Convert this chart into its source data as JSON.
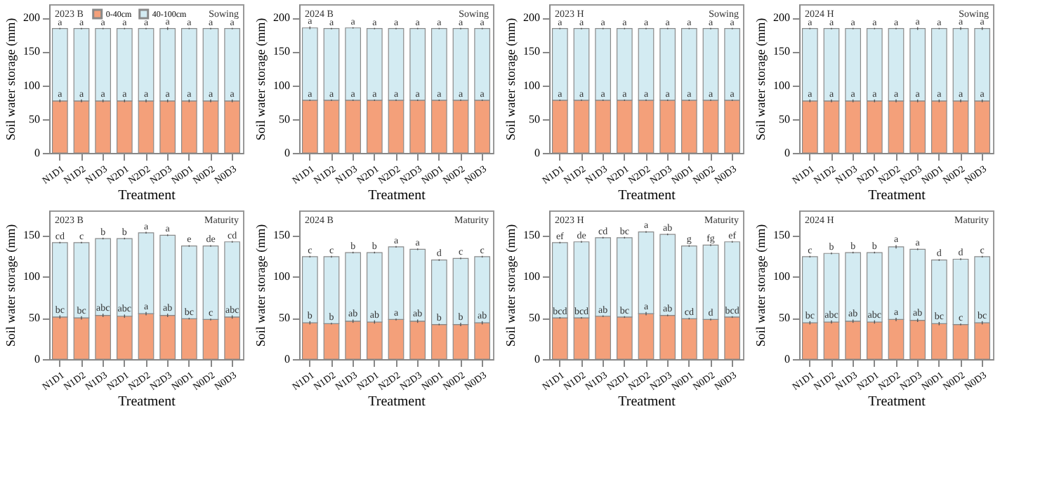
{
  "chart_data": [
    {
      "type": "bar",
      "stacked": true,
      "title": "2023 B",
      "subtitle": "Sowing",
      "xlabel": "Treatment",
      "ylabel": "Soil water storage (mm)",
      "ylim": [
        0,
        220
      ],
      "yticks": [
        0,
        50,
        100,
        150,
        200
      ],
      "legend": "top",
      "categories": [
        "N1D1",
        "N1D2",
        "N1D3",
        "N2D1",
        "N2D2",
        "N2D3",
        "N0D1",
        "N0D2",
        "N0D3"
      ],
      "series": [
        {
          "name": "0-40cm",
          "color": "#f4a07a",
          "values": [
            77,
            77,
            77,
            77,
            77,
            77,
            77,
            77,
            77
          ],
          "errors": [
            2,
            2,
            2,
            2,
            2,
            2,
            2,
            2,
            2
          ]
        },
        {
          "name": "40-100cm",
          "color": "#d3ebf2",
          "values": [
            107,
            107,
            107,
            107,
            107,
            107,
            107,
            107,
            107
          ],
          "errors": [
            1,
            1,
            1,
            1,
            1,
            2,
            1,
            1,
            1
          ]
        }
      ],
      "annotations": [
        {
          "text": "a",
          "x": "N1D1",
          "y": 79
        },
        {
          "text": "a",
          "x": "N1D2",
          "y": 79
        },
        {
          "text": "a",
          "x": "N1D3",
          "y": 79
        },
        {
          "text": "a",
          "x": "N2D1",
          "y": 79
        },
        {
          "text": "a",
          "x": "N2D2",
          "y": 79
        },
        {
          "text": "a",
          "x": "N2D3",
          "y": 79
        },
        {
          "text": "a",
          "x": "N0D1",
          "y": 79
        },
        {
          "text": "a",
          "x": "N0D2",
          "y": 79
        },
        {
          "text": "a",
          "x": "N0D3",
          "y": 79
        },
        {
          "text": "a",
          "x": "N1D1",
          "y": 185
        },
        {
          "text": "a",
          "x": "N1D2",
          "y": 185
        },
        {
          "text": "a",
          "x": "N1D3",
          "y": 185
        },
        {
          "text": "a",
          "x": "N2D1",
          "y": 185
        },
        {
          "text": "a",
          "x": "N2D2",
          "y": 185
        },
        {
          "text": "a",
          "x": "N2D3",
          "y": 186
        },
        {
          "text": "a",
          "x": "N0D1",
          "y": 185
        },
        {
          "text": "a",
          "x": "N0D2",
          "y": 185
        },
        {
          "text": "a",
          "x": "N0D3",
          "y": 185
        }
      ]
    },
    {
      "type": "bar",
      "stacked": true,
      "title": "2024 B",
      "subtitle": "Sowing",
      "xlabel": "Treatment",
      "ylabel": "Soil water storage (mm)",
      "ylim": [
        0,
        220
      ],
      "yticks": [
        0,
        50,
        100,
        150,
        200
      ],
      "categories": [
        "N1D1",
        "N1D2",
        "N1D3",
        "N2D1",
        "N2D2",
        "N2D3",
        "N0D1",
        "N0D2",
        "N0D3"
      ],
      "series": [
        {
          "color": "#f4a07a",
          "values": [
            78,
            78,
            78,
            78,
            78,
            78,
            78,
            78,
            78
          ],
          "errors": [
            1,
            1,
            1,
            1,
            1,
            1,
            1,
            1,
            1
          ]
        },
        {
          "color": "#d3ebf2",
          "values": [
            107,
            106,
            107,
            106,
            106,
            106,
            106,
            106,
            106
          ],
          "errors": [
            2,
            1,
            1,
            1,
            1,
            1,
            1,
            1,
            1
          ]
        }
      ],
      "annotations": [
        {
          "text": "a",
          "x": "N1D1",
          "y": 79
        },
        {
          "text": "a",
          "x": "N1D2",
          "y": 79
        },
        {
          "text": "a",
          "x": "N1D3",
          "y": 79
        },
        {
          "text": "a",
          "x": "N2D1",
          "y": 79
        },
        {
          "text": "a",
          "x": "N2D2",
          "y": 79
        },
        {
          "text": "a",
          "x": "N2D3",
          "y": 79
        },
        {
          "text": "a",
          "x": "N0D1",
          "y": 79
        },
        {
          "text": "a",
          "x": "N0D2",
          "y": 79
        },
        {
          "text": "a",
          "x": "N0D3",
          "y": 79
        },
        {
          "text": "a",
          "x": "N1D1",
          "y": 187
        },
        {
          "text": "a",
          "x": "N1D2",
          "y": 185
        },
        {
          "text": "a",
          "x": "N1D3",
          "y": 186
        },
        {
          "text": "a",
          "x": "N2D1",
          "y": 185
        },
        {
          "text": "a",
          "x": "N2D2",
          "y": 185
        },
        {
          "text": "a",
          "x": "N2D3",
          "y": 185
        },
        {
          "text": "a",
          "x": "N0D1",
          "y": 185
        },
        {
          "text": "a",
          "x": "N0D2",
          "y": 185
        },
        {
          "text": "a",
          "x": "N0D3",
          "y": 185
        }
      ]
    },
    {
      "type": "bar",
      "stacked": true,
      "title": "2023 H",
      "subtitle": "Sowing",
      "xlabel": "Treatment",
      "ylabel": "Soil water storage (mm)",
      "ylim": [
        0,
        220
      ],
      "yticks": [
        0,
        50,
        100,
        150,
        200
      ],
      "categories": [
        "N1D1",
        "N1D2",
        "N1D3",
        "N2D1",
        "N2D2",
        "N2D3",
        "N0D1",
        "N0D2",
        "N0D3"
      ],
      "series": [
        {
          "color": "#f4a07a",
          "values": [
            78,
            78,
            78,
            78,
            78,
            78,
            78,
            78,
            78
          ],
          "errors": [
            1,
            1,
            1,
            1,
            1,
            1,
            1,
            1,
            1
          ]
        },
        {
          "color": "#d3ebf2",
          "values": [
            106,
            106,
            106,
            106,
            106,
            106,
            106,
            106,
            106
          ],
          "errors": [
            1,
            1,
            1,
            1,
            1,
            1,
            1,
            1,
            1
          ]
        }
      ],
      "annotations": [
        {
          "text": "a",
          "x": "N1D1",
          "y": 79
        },
        {
          "text": "a",
          "x": "N1D2",
          "y": 79
        },
        {
          "text": "a",
          "x": "N1D3",
          "y": 79
        },
        {
          "text": "a",
          "x": "N2D1",
          "y": 79
        },
        {
          "text": "a",
          "x": "N2D2",
          "y": 79
        },
        {
          "text": "a",
          "x": "N2D3",
          "y": 79
        },
        {
          "text": "a",
          "x": "N0D1",
          "y": 79
        },
        {
          "text": "a",
          "x": "N0D2",
          "y": 79
        },
        {
          "text": "a",
          "x": "N0D3",
          "y": 79
        },
        {
          "text": "a",
          "x": "N1D1",
          "y": 185
        },
        {
          "text": "a",
          "x": "N1D2",
          "y": 185
        },
        {
          "text": "a",
          "x": "N1D3",
          "y": 185
        },
        {
          "text": "a",
          "x": "N2D1",
          "y": 185
        },
        {
          "text": "a",
          "x": "N2D2",
          "y": 185
        },
        {
          "text": "a",
          "x": "N2D3",
          "y": 185
        },
        {
          "text": "a",
          "x": "N0D1",
          "y": 185
        },
        {
          "text": "a",
          "x": "N0D2",
          "y": 185
        },
        {
          "text": "a",
          "x": "N0D3",
          "y": 185
        }
      ]
    },
    {
      "type": "bar",
      "stacked": true,
      "title": "2024 H",
      "subtitle": "Sowing",
      "xlabel": "Treatment",
      "ylabel": "Soil water storage (mm)",
      "ylim": [
        0,
        220
      ],
      "yticks": [
        0,
        50,
        100,
        150,
        200
      ],
      "categories": [
        "N1D1",
        "N1D2",
        "N1D3",
        "N2D1",
        "N2D2",
        "N2D3",
        "N0D1",
        "N0D2",
        "N0D3"
      ],
      "series": [
        {
          "color": "#f4a07a",
          "values": [
            77,
            77,
            77,
            77,
            77,
            77,
            77,
            77,
            77
          ],
          "errors": [
            2,
            2,
            2,
            2,
            2,
            2,
            2,
            2,
            2
          ]
        },
        {
          "color": "#d3ebf2",
          "values": [
            107,
            107,
            107,
            107,
            107,
            107,
            107,
            107,
            107
          ],
          "errors": [
            1,
            1,
            1,
            1,
            1,
            2,
            1,
            2,
            2
          ]
        }
      ],
      "annotations": [
        {
          "text": "a",
          "x": "N1D1",
          "y": 79
        },
        {
          "text": "a",
          "x": "N1D2",
          "y": 79
        },
        {
          "text": "a",
          "x": "N1D3",
          "y": 79
        },
        {
          "text": "a",
          "x": "N2D1",
          "y": 79
        },
        {
          "text": "a",
          "x": "N2D2",
          "y": 79
        },
        {
          "text": "a",
          "x": "N2D3",
          "y": 79
        },
        {
          "text": "a",
          "x": "N0D1",
          "y": 79
        },
        {
          "text": "a",
          "x": "N0D2",
          "y": 79
        },
        {
          "text": "a",
          "x": "N0D3",
          "y": 79
        },
        {
          "text": "a",
          "x": "N1D1",
          "y": 185
        },
        {
          "text": "a",
          "x": "N1D2",
          "y": 185
        },
        {
          "text": "a",
          "x": "N1D3",
          "y": 185
        },
        {
          "text": "a",
          "x": "N2D1",
          "y": 185
        },
        {
          "text": "a",
          "x": "N2D2",
          "y": 185
        },
        {
          "text": "a",
          "x": "N2D3",
          "y": 186
        },
        {
          "text": "a",
          "x": "N0D1",
          "y": 185
        },
        {
          "text": "a",
          "x": "N0D2",
          "y": 186
        },
        {
          "text": "a",
          "x": "N0D3",
          "y": 186
        }
      ]
    },
    {
      "type": "bar",
      "stacked": true,
      "title": "2023 B",
      "subtitle": "Maturity",
      "xlabel": "Treatment",
      "ylabel": "Soil water storage (mm)",
      "ylim": [
        0,
        180
      ],
      "yticks": [
        0,
        50,
        100,
        150
      ],
      "categories": [
        "N1D1",
        "N1D2",
        "N1D3",
        "N2D1",
        "N2D2",
        "N2D3",
        "N0D1",
        "N0D2",
        "N0D3"
      ],
      "series": [
        {
          "color": "#f4a07a",
          "values": [
            51,
            50,
            53,
            52,
            55,
            53,
            49,
            48,
            51
          ],
          "errors": [
            2,
            2,
            2,
            2,
            2,
            2,
            1,
            1,
            2
          ]
        },
        {
          "color": "#d3ebf2",
          "values": [
            90,
            91,
            93,
            94,
            98,
            97,
            88,
            89,
            91
          ],
          "errors": [
            1,
            1,
            1,
            1,
            1,
            1,
            1,
            1,
            1
          ]
        }
      ],
      "annotations": [
        {
          "text": "bc",
          "x": "N1D1",
          "y": 53
        },
        {
          "text": "bc",
          "x": "N1D2",
          "y": 52
        },
        {
          "text": "abc",
          "x": "N1D3",
          "y": 55
        },
        {
          "text": "abc",
          "x": "N2D1",
          "y": 54
        },
        {
          "text": "a",
          "x": "N2D2",
          "y": 57
        },
        {
          "text": "ab",
          "x": "N2D3",
          "y": 55
        },
        {
          "text": "bc",
          "x": "N0D1",
          "y": 50
        },
        {
          "text": "c",
          "x": "N0D2",
          "y": 49
        },
        {
          "text": "abc",
          "x": "N0D3",
          "y": 53
        },
        {
          "text": "cd",
          "x": "N1D1",
          "y": 142
        },
        {
          "text": "c",
          "x": "N1D2",
          "y": 142
        },
        {
          "text": "b",
          "x": "N1D3",
          "y": 147
        },
        {
          "text": "b",
          "x": "N2D1",
          "y": 147
        },
        {
          "text": "a",
          "x": "N2D2",
          "y": 154
        },
        {
          "text": "a",
          "x": "N2D3",
          "y": 151
        },
        {
          "text": "e",
          "x": "N0D1",
          "y": 138
        },
        {
          "text": "de",
          "x": "N0D2",
          "y": 138
        },
        {
          "text": "cd",
          "x": "N0D3",
          "y": 143
        }
      ]
    },
    {
      "type": "bar",
      "stacked": true,
      "title": "2024 B",
      "subtitle": "Maturity",
      "xlabel": "Treatment",
      "ylabel": "Soil water storage (mm)",
      "ylim": [
        0,
        180
      ],
      "yticks": [
        0,
        50,
        100,
        150
      ],
      "categories": [
        "N1D1",
        "N1D2",
        "N1D3",
        "N2D1",
        "N2D2",
        "N2D3",
        "N0D1",
        "N0D2",
        "N0D3"
      ],
      "series": [
        {
          "color": "#f4a07a",
          "values": [
            44,
            43,
            46,
            45,
            48,
            46,
            42,
            42,
            44
          ],
          "errors": [
            2,
            1,
            2,
            2,
            1,
            2,
            1,
            2,
            2
          ]
        },
        {
          "color": "#d3ebf2",
          "values": [
            80,
            81,
            83,
            84,
            88,
            87,
            78,
            80,
            80
          ],
          "errors": [
            1,
            1,
            1,
            1,
            1,
            1,
            1,
            1,
            1
          ]
        }
      ],
      "annotations": [
        {
          "text": "b",
          "x": "N1D1",
          "y": 46
        },
        {
          "text": "b",
          "x": "N1D2",
          "y": 44
        },
        {
          "text": "ab",
          "x": "N1D3",
          "y": 48
        },
        {
          "text": "ab",
          "x": "N2D1",
          "y": 47
        },
        {
          "text": "a",
          "x": "N2D2",
          "y": 49
        },
        {
          "text": "ab",
          "x": "N2D3",
          "y": 48
        },
        {
          "text": "b",
          "x": "N0D1",
          "y": 43
        },
        {
          "text": "b",
          "x": "N0D2",
          "y": 44
        },
        {
          "text": "ab",
          "x": "N0D3",
          "y": 46
        },
        {
          "text": "c",
          "x": "N1D1",
          "y": 125
        },
        {
          "text": "c",
          "x": "N1D2",
          "y": 125
        },
        {
          "text": "b",
          "x": "N1D3",
          "y": 130
        },
        {
          "text": "b",
          "x": "N2D1",
          "y": 130
        },
        {
          "text": "a",
          "x": "N2D2",
          "y": 137
        },
        {
          "text": "a",
          "x": "N2D3",
          "y": 134
        },
        {
          "text": "d",
          "x": "N0D1",
          "y": 121
        },
        {
          "text": "c",
          "x": "N0D2",
          "y": 123
        },
        {
          "text": "c",
          "x": "N0D3",
          "y": 125
        }
      ]
    },
    {
      "type": "bar",
      "stacked": true,
      "title": "2023 H",
      "subtitle": "Maturity",
      "xlabel": "Treatment",
      "ylabel": "Soil water storage (mm)",
      "ylim": [
        0,
        180
      ],
      "yticks": [
        0,
        50,
        100,
        150
      ],
      "categories": [
        "N1D1",
        "N1D2",
        "N1D3",
        "N2D1",
        "N2D2",
        "N2D3",
        "N0D1",
        "N0D2",
        "N0D3"
      ],
      "series": [
        {
          "color": "#f4a07a",
          "values": [
            50,
            50,
            52,
            51,
            55,
            53,
            49,
            48,
            51
          ],
          "errors": [
            1,
            1,
            1,
            1,
            2,
            1,
            1,
            1,
            1
          ]
        },
        {
          "color": "#d3ebf2",
          "values": [
            91,
            92,
            95,
            96,
            99,
            98,
            88,
            90,
            91
          ],
          "errors": [
            1,
            1,
            1,
            1,
            1,
            1,
            1,
            1,
            1
          ]
        }
      ],
      "annotations": [
        {
          "text": "bcd",
          "x": "N1D1",
          "y": 51
        },
        {
          "text": "bcd",
          "x": "N1D2",
          "y": 51
        },
        {
          "text": "ab",
          "x": "N1D3",
          "y": 53
        },
        {
          "text": "bc",
          "x": "N2D1",
          "y": 52
        },
        {
          "text": "a",
          "x": "N2D2",
          "y": 57
        },
        {
          "text": "ab",
          "x": "N2D3",
          "y": 54
        },
        {
          "text": "cd",
          "x": "N0D1",
          "y": 50
        },
        {
          "text": "d",
          "x": "N0D2",
          "y": 49
        },
        {
          "text": "bcd",
          "x": "N0D3",
          "y": 52
        },
        {
          "text": "ef",
          "x": "N1D1",
          "y": 142
        },
        {
          "text": "de",
          "x": "N1D2",
          "y": 143
        },
        {
          "text": "cd",
          "x": "N1D3",
          "y": 148
        },
        {
          "text": "bc",
          "x": "N2D1",
          "y": 148
        },
        {
          "text": "a",
          "x": "N2D2",
          "y": 155
        },
        {
          "text": "ab",
          "x": "N2D3",
          "y": 152
        },
        {
          "text": "g",
          "x": "N0D1",
          "y": 138
        },
        {
          "text": "fg",
          "x": "N0D2",
          "y": 139
        },
        {
          "text": "ef",
          "x": "N0D3",
          "y": 143
        }
      ]
    },
    {
      "type": "bar",
      "stacked": true,
      "title": "2024 H",
      "subtitle": "Maturity",
      "xlabel": "Treatment",
      "ylabel": "Soil water storage (mm)",
      "ylim": [
        0,
        180
      ],
      "yticks": [
        0,
        50,
        100,
        150
      ],
      "categories": [
        "N1D1",
        "N1D2",
        "N1D3",
        "N2D1",
        "N2D2",
        "N2D3",
        "N0D1",
        "N0D2",
        "N0D3"
      ],
      "series": [
        {
          "color": "#f4a07a",
          "values": [
            44,
            45,
            46,
            45,
            48,
            47,
            43,
            42,
            44
          ],
          "errors": [
            2,
            2,
            2,
            2,
            2,
            2,
            2,
            1,
            2
          ]
        },
        {
          "color": "#d3ebf2",
          "values": [
            80,
            83,
            83,
            84,
            88,
            86,
            77,
            79,
            80
          ],
          "errors": [
            1,
            1,
            1,
            1,
            2,
            1,
            1,
            1,
            1
          ]
        }
      ],
      "annotations": [
        {
          "text": "bc",
          "x": "N1D1",
          "y": 46
        },
        {
          "text": "abc",
          "x": "N1D2",
          "y": 47
        },
        {
          "text": "ab",
          "x": "N1D3",
          "y": 48
        },
        {
          "text": "abc",
          "x": "N2D1",
          "y": 47
        },
        {
          "text": "a",
          "x": "N2D2",
          "y": 50
        },
        {
          "text": "ab",
          "x": "N2D3",
          "y": 49
        },
        {
          "text": "bc",
          "x": "N0D1",
          "y": 45
        },
        {
          "text": "c",
          "x": "N0D2",
          "y": 43
        },
        {
          "text": "bc",
          "x": "N0D3",
          "y": 46
        },
        {
          "text": "c",
          "x": "N1D1",
          "y": 125
        },
        {
          "text": "b",
          "x": "N1D2",
          "y": 129
        },
        {
          "text": "b",
          "x": "N1D3",
          "y": 130
        },
        {
          "text": "b",
          "x": "N2D1",
          "y": 130
        },
        {
          "text": "a",
          "x": "N2D2",
          "y": 138
        },
        {
          "text": "a",
          "x": "N2D3",
          "y": 134
        },
        {
          "text": "d",
          "x": "N0D1",
          "y": 121
        },
        {
          "text": "d",
          "x": "N0D2",
          "y": 122
        },
        {
          "text": "c",
          "x": "N0D3",
          "y": 125
        }
      ]
    }
  ]
}
